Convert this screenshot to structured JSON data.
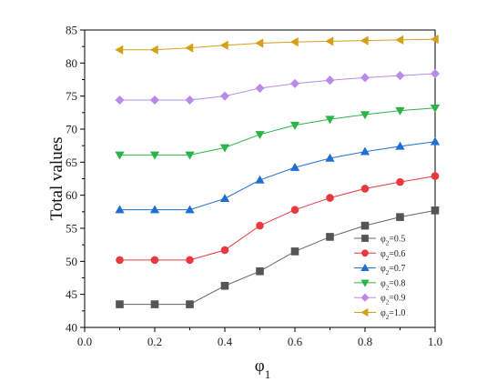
{
  "chart_data": {
    "type": "line",
    "xlabel": "φ",
    "xlabel_sub": "1",
    "ylabel": "Total values",
    "xlim": [
      0.0,
      1.0
    ],
    "ylim": [
      40,
      85
    ],
    "xticks": [
      "0.0",
      "0.2",
      "0.4",
      "0.6",
      "0.8",
      "1.0"
    ],
    "yticks": [
      "40",
      "45",
      "50",
      "55",
      "60",
      "65",
      "70",
      "75",
      "80",
      "85"
    ],
    "grid": false,
    "legend_position": "bottom-right",
    "x": [
      0.1,
      0.2,
      0.3,
      0.4,
      0.5,
      0.6,
      0.7,
      0.8,
      0.9,
      1.0
    ],
    "series": [
      {
        "name": "φ2=0.5",
        "prefix": "φ",
        "sub": "2",
        "suffix": "=0.5",
        "color": "#555555",
        "line_color": "#666666",
        "marker": "square",
        "values": [
          43.5,
          43.5,
          43.5,
          46.3,
          48.5,
          51.5,
          53.7,
          55.4,
          56.7,
          57.7
        ]
      },
      {
        "name": "φ2=0.6",
        "prefix": "φ",
        "sub": "2",
        "suffix": "=0.6",
        "color": "#e8393f",
        "line_color": "#e8393f",
        "marker": "circle",
        "values": [
          50.2,
          50.2,
          50.2,
          51.7,
          55.4,
          57.8,
          59.6,
          61.0,
          62.0,
          62.9
        ]
      },
      {
        "name": "φ2=0.7",
        "prefix": "φ",
        "sub": "2",
        "suffix": "=0.7",
        "color": "#1f6fd1",
        "line_color": "#1f6fd1",
        "marker": "triangle-up",
        "values": [
          57.8,
          57.8,
          57.8,
          59.5,
          62.3,
          64.2,
          65.6,
          66.6,
          67.4,
          68.1
        ]
      },
      {
        "name": "φ2=0.8",
        "prefix": "φ",
        "sub": "2",
        "suffix": "=0.8",
        "color": "#2db34a",
        "line_color": "#2db34a",
        "marker": "triangle-down",
        "values": [
          66.1,
          66.1,
          66.1,
          67.2,
          69.2,
          70.6,
          71.5,
          72.2,
          72.8,
          73.2
        ]
      },
      {
        "name": "φ2=0.9",
        "prefix": "φ",
        "sub": "2",
        "suffix": "=0.9",
        "color": "#b98ae8",
        "line_color": "#b98ae8",
        "marker": "diamond",
        "values": [
          74.4,
          74.4,
          74.4,
          75.0,
          76.2,
          76.9,
          77.4,
          77.8,
          78.1,
          78.4
        ]
      },
      {
        "name": "φ2=1.0",
        "prefix": "φ",
        "sub": "2",
        "suffix": "=1.0",
        "color": "#d4a017",
        "line_color": "#d4a017",
        "marker": "triangle-left",
        "values": [
          82.0,
          82.0,
          82.3,
          82.7,
          83.0,
          83.2,
          83.3,
          83.4,
          83.5,
          83.6
        ]
      }
    ]
  }
}
